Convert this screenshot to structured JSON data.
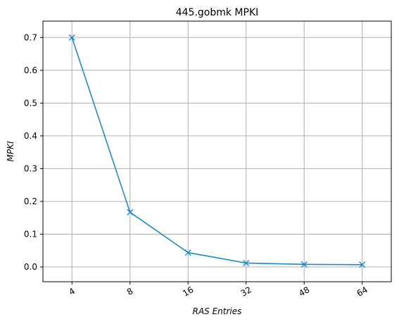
{
  "chart_data": {
    "type": "line",
    "title": "445.gobmk MPKI",
    "xlabel": "RAS Entries",
    "ylabel": "MPKI",
    "categories": [
      "4",
      "8",
      "16",
      "32",
      "48",
      "64"
    ],
    "series": [
      {
        "values": [
          0.7,
          0.167,
          0.044,
          0.012,
          0.008,
          0.007
        ]
      }
    ],
    "ylim": [
      -0.045,
      0.75
    ],
    "yticks": [
      "0.0",
      "0.1",
      "0.2",
      "0.3",
      "0.4",
      "0.5",
      "0.6",
      "0.7"
    ],
    "grid": true,
    "marker": "x",
    "line_color": "#1a8ccc",
    "grid_color": "#b0b0b0"
  }
}
